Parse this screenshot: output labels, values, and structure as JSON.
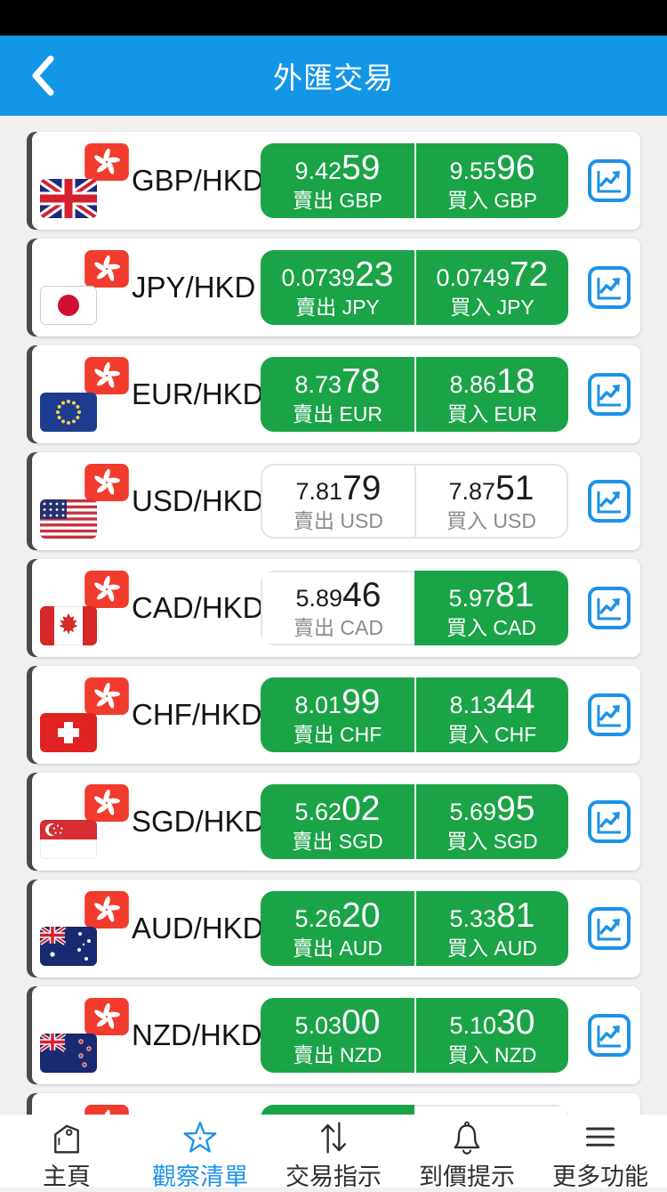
{
  "header": {
    "title": "外匯交易",
    "back_icon": "chevron-left-icon"
  },
  "colors": {
    "header_blue": "#1496E6",
    "green": "#1BA348",
    "accent_blue": "#1C92E8",
    "card_edge": "#4B4B4B",
    "background": "#F0F0F1"
  },
  "watchlist": {
    "rows": [
      {
        "pair": "GBP/HKD",
        "flag": "gbp",
        "sell": {
          "price_small": "9.42",
          "price_big": "59",
          "label": "賣出 GBP",
          "variant": "green"
        },
        "buy": {
          "price_small": "9.55",
          "price_big": "96",
          "label": "買入 GBP",
          "variant": "green"
        }
      },
      {
        "pair": "JPY/HKD",
        "flag": "jpy",
        "sell": {
          "price_small": "0.0739",
          "price_big": "23",
          "label": "賣出 JPY",
          "variant": "green"
        },
        "buy": {
          "price_small": "0.0749",
          "price_big": "72",
          "label": "買入 JPY",
          "variant": "green"
        }
      },
      {
        "pair": "EUR/HKD",
        "flag": "eur",
        "sell": {
          "price_small": "8.73",
          "price_big": "78",
          "label": "賣出 EUR",
          "variant": "green"
        },
        "buy": {
          "price_small": "8.86",
          "price_big": "18",
          "label": "買入 EUR",
          "variant": "green"
        }
      },
      {
        "pair": "USD/HKD",
        "flag": "usd",
        "sell": {
          "price_small": "7.81",
          "price_big": "79",
          "label": "賣出 USD",
          "variant": "white"
        },
        "buy": {
          "price_small": "7.87",
          "price_big": "51",
          "label": "買入 USD",
          "variant": "white"
        }
      },
      {
        "pair": "CAD/HKD",
        "flag": "cad",
        "sell": {
          "price_small": "5.89",
          "price_big": "46",
          "label": "賣出 CAD",
          "variant": "white"
        },
        "buy": {
          "price_small": "5.97",
          "price_big": "81",
          "label": "買入 CAD",
          "variant": "green"
        }
      },
      {
        "pair": "CHF/HKD",
        "flag": "chf",
        "sell": {
          "price_small": "8.01",
          "price_big": "99",
          "label": "賣出 CHF",
          "variant": "green"
        },
        "buy": {
          "price_small": "8.13",
          "price_big": "44",
          "label": "買入 CHF",
          "variant": "green"
        }
      },
      {
        "pair": "SGD/HKD",
        "flag": "sgd",
        "sell": {
          "price_small": "5.62",
          "price_big": "02",
          "label": "賣出 SGD",
          "variant": "green"
        },
        "buy": {
          "price_small": "5.69",
          "price_big": "95",
          "label": "買入 SGD",
          "variant": "green"
        }
      },
      {
        "pair": "AUD/HKD",
        "flag": "aud",
        "sell": {
          "price_small": "5.26",
          "price_big": "20",
          "label": "賣出 AUD",
          "variant": "green"
        },
        "buy": {
          "price_small": "5.33",
          "price_big": "81",
          "label": "買入 AUD",
          "variant": "green"
        }
      },
      {
        "pair": "NZD/HKD",
        "flag": "nzd",
        "sell": {
          "price_small": "5.03",
          "price_big": "00",
          "label": "賣出 NZD",
          "variant": "green"
        },
        "buy": {
          "price_small": "5.10",
          "price_big": "30",
          "label": "買入 NZD",
          "variant": "green"
        }
      }
    ],
    "partial_row": {
      "sell_variant": "green",
      "buy_variant": "white"
    }
  },
  "tabbar": {
    "items": [
      {
        "label": "主頁",
        "icon": "tag-icon",
        "active": false
      },
      {
        "label": "觀察清單",
        "icon": "star-icon",
        "active": true
      },
      {
        "label": "交易指示",
        "icon": "arrows-up-down-icon",
        "active": false
      },
      {
        "label": "到價提示",
        "icon": "bell-icon",
        "active": false
      },
      {
        "label": "更多功能",
        "icon": "menu-lines-icon",
        "active": false
      }
    ]
  }
}
